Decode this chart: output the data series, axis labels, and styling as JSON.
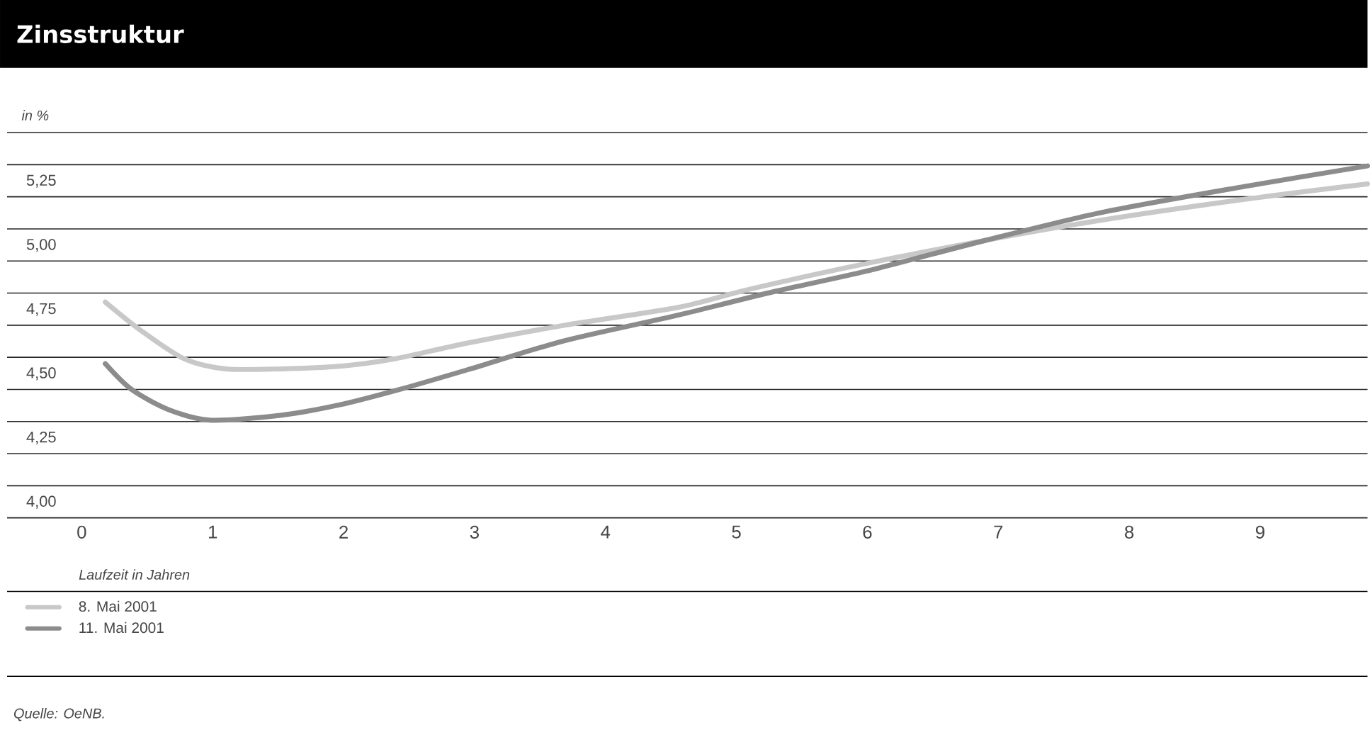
{
  "chart_data": {
    "type": "line",
    "title": "Zinsstruktur",
    "xlabel": "Laufzeit in Jahren",
    "ylabel": "in %",
    "xlim": [
      -0.57,
      9.82
    ],
    "xticks": [
      0,
      1,
      2,
      3,
      4,
      5,
      6,
      7,
      8,
      9
    ],
    "ylim": [
      4.0,
      5.5
    ],
    "yticks": [
      {
        "value": 4.0,
        "label": "4,00"
      },
      {
        "value": 4.125,
        "label": null
      },
      {
        "value": 4.25,
        "label": "4,25"
      },
      {
        "value": 4.375,
        "label": null
      },
      {
        "value": 4.5,
        "label": "4,50"
      },
      {
        "value": 4.625,
        "label": null
      },
      {
        "value": 4.75,
        "label": "4,75"
      },
      {
        "value": 4.875,
        "label": null
      },
      {
        "value": 5.0,
        "label": "5,00"
      },
      {
        "value": 5.125,
        "label": null
      },
      {
        "value": 5.25,
        "label": "5,25"
      },
      {
        "value": 5.375,
        "label": null
      },
      {
        "value": 5.5,
        "label": null
      }
    ],
    "grid": "y",
    "legend": "bottom left",
    "marker": "none",
    "line_style": "solid",
    "annotations": [
      "Quelle: OeNB."
    ],
    "series": [
      {
        "name": "8. Mai 2001",
        "color": "#c8c8c8",
        "x": [
          0.18,
          0.45,
          0.78,
          1.1,
          1.53,
          1.97,
          2.4,
          2.94,
          3.69,
          4.56,
          5.1,
          5.99,
          6.9,
          7.8,
          8.88,
          9.82
        ],
        "values": [
          4.84,
          4.73,
          4.62,
          4.58,
          4.58,
          4.59,
          4.62,
          4.68,
          4.75,
          4.82,
          4.89,
          4.99,
          5.08,
          5.16,
          5.24,
          5.3
        ]
      },
      {
        "name": "11. Mai 2001",
        "color": "#8c8c8c",
        "x": [
          0.18,
          0.38,
          0.67,
          0.99,
          1.53,
          1.97,
          2.43,
          2.97,
          3.69,
          4.56,
          5.28,
          5.99,
          6.9,
          7.8,
          8.88,
          9.82
        ],
        "values": [
          4.6,
          4.5,
          4.42,
          4.38,
          4.4,
          4.44,
          4.5,
          4.58,
          4.69,
          4.79,
          4.88,
          4.96,
          5.08,
          5.19,
          5.29,
          5.37
        ]
      }
    ]
  }
}
